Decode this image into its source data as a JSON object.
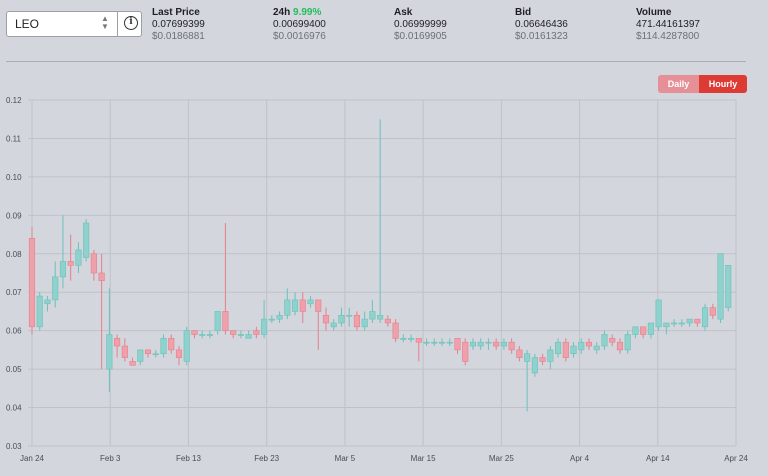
{
  "pair_selector": {
    "symbol": "LEO"
  },
  "stats": [
    {
      "label": "Last Price",
      "value": "0.07699399",
      "usd": "$0.0186881"
    },
    {
      "label": "24h",
      "change": "9.99%",
      "value": "0.00699400",
      "usd": "$0.0016976"
    },
    {
      "label": "Ask",
      "value": "0.06999999",
      "usd": "$0.0169905"
    },
    {
      "label": "Bid",
      "value": "0.06646436",
      "usd": "$0.0161323"
    },
    {
      "label": "Volume",
      "value": "471.44161397",
      "usd": "$114.4287800"
    }
  ],
  "timeframe": {
    "daily_label": "Daily",
    "hourly_label": "Hourly",
    "selected": "Hourly"
  },
  "colors": {
    "up": "#8fd1cc",
    "down": "#f0a0aa",
    "up_stroke": "#6cc1bb",
    "down_stroke": "#e57f8c"
  },
  "chart_data": {
    "type": "candlestick",
    "ylim": [
      0.03,
      0.12
    ],
    "y_ticks": [
      "0.12",
      "0.11",
      "0.10",
      "0.09",
      "0.08",
      "0.07",
      "0.06",
      "0.05",
      "0.04",
      "0.03"
    ],
    "x_ticks": [
      "Jan 24",
      "Feb 3",
      "Feb 13",
      "Feb 23",
      "Mar 5",
      "Mar 15",
      "Mar 25",
      "Apr 4",
      "Apr 14",
      "Apr 24"
    ],
    "x_range_days": [
      0,
      91
    ],
    "candles": [
      [
        0,
        0.084,
        0.061,
        0.087,
        0.059
      ],
      [
        1,
        0.061,
        0.069,
        0.07,
        0.06
      ],
      [
        2,
        0.067,
        0.068,
        0.069,
        0.065
      ],
      [
        3,
        0.068,
        0.074,
        0.078,
        0.066
      ],
      [
        4,
        0.074,
        0.078,
        0.09,
        0.071
      ],
      [
        5,
        0.078,
        0.077,
        0.085,
        0.073
      ],
      [
        6,
        0.077,
        0.081,
        0.083,
        0.075
      ],
      [
        7,
        0.079,
        0.088,
        0.089,
        0.078
      ],
      [
        8,
        0.08,
        0.075,
        0.081,
        0.073
      ],
      [
        9,
        0.075,
        0.073,
        0.08,
        0.05
      ],
      [
        10,
        0.05,
        0.059,
        0.071,
        0.044
      ],
      [
        11,
        0.058,
        0.056,
        0.059,
        0.053
      ],
      [
        12,
        0.056,
        0.053,
        0.058,
        0.052
      ],
      [
        13,
        0.052,
        0.051,
        0.053,
        0.051
      ],
      [
        14,
        0.052,
        0.055,
        0.055,
        0.051
      ],
      [
        15,
        0.055,
        0.054,
        0.055,
        0.053
      ],
      [
        16,
        0.054,
        0.054,
        0.055,
        0.053
      ],
      [
        17,
        0.054,
        0.058,
        0.059,
        0.053
      ],
      [
        18,
        0.058,
        0.055,
        0.059,
        0.054
      ],
      [
        19,
        0.055,
        0.053,
        0.056,
        0.051
      ],
      [
        20,
        0.052,
        0.06,
        0.061,
        0.051
      ],
      [
        21,
        0.06,
        0.059,
        0.06,
        0.058
      ],
      [
        22,
        0.059,
        0.059,
        0.06,
        0.058
      ],
      [
        23,
        0.059,
        0.059,
        0.06,
        0.058
      ],
      [
        24,
        0.06,
        0.065,
        0.065,
        0.059
      ],
      [
        25,
        0.065,
        0.06,
        0.088,
        0.059
      ],
      [
        26,
        0.06,
        0.059,
        0.06,
        0.058
      ],
      [
        27,
        0.059,
        0.059,
        0.06,
        0.058
      ],
      [
        28,
        0.058,
        0.059,
        0.06,
        0.058
      ],
      [
        29,
        0.06,
        0.059,
        0.061,
        0.058
      ],
      [
        30,
        0.059,
        0.063,
        0.068,
        0.058
      ],
      [
        31,
        0.063,
        0.063,
        0.064,
        0.062
      ],
      [
        32,
        0.063,
        0.064,
        0.065,
        0.062
      ],
      [
        33,
        0.064,
        0.068,
        0.071,
        0.063
      ],
      [
        34,
        0.065,
        0.068,
        0.07,
        0.064
      ],
      [
        35,
        0.068,
        0.065,
        0.07,
        0.062
      ],
      [
        36,
        0.067,
        0.068,
        0.069,
        0.066
      ],
      [
        37,
        0.068,
        0.065,
        0.068,
        0.055
      ],
      [
        38,
        0.064,
        0.062,
        0.066,
        0.06
      ],
      [
        39,
        0.061,
        0.062,
        0.063,
        0.06
      ],
      [
        40,
        0.062,
        0.064,
        0.066,
        0.061
      ],
      [
        41,
        0.064,
        0.064,
        0.066,
        0.061
      ],
      [
        42,
        0.064,
        0.061,
        0.065,
        0.06
      ],
      [
        43,
        0.061,
        0.063,
        0.065,
        0.06
      ],
      [
        44,
        0.063,
        0.065,
        0.068,
        0.062
      ],
      [
        45,
        0.063,
        0.064,
        0.115,
        0.062
      ],
      [
        46,
        0.063,
        0.062,
        0.064,
        0.061
      ],
      [
        47,
        0.062,
        0.058,
        0.063,
        0.057
      ],
      [
        48,
        0.058,
        0.058,
        0.059,
        0.057
      ],
      [
        49,
        0.058,
        0.058,
        0.059,
        0.057
      ],
      [
        50,
        0.058,
        0.057,
        0.058,
        0.052
      ],
      [
        51,
        0.057,
        0.057,
        0.058,
        0.056
      ],
      [
        52,
        0.057,
        0.057,
        0.058,
        0.056
      ],
      [
        53,
        0.057,
        0.057,
        0.058,
        0.056
      ],
      [
        54,
        0.057,
        0.057,
        0.058,
        0.056
      ],
      [
        55,
        0.058,
        0.055,
        0.058,
        0.054
      ],
      [
        56,
        0.057,
        0.052,
        0.058,
        0.051
      ],
      [
        57,
        0.056,
        0.057,
        0.058,
        0.055
      ],
      [
        58,
        0.056,
        0.057,
        0.058,
        0.055
      ],
      [
        59,
        0.057,
        0.057,
        0.058,
        0.055
      ],
      [
        60,
        0.057,
        0.056,
        0.058,
        0.055
      ],
      [
        61,
        0.056,
        0.057,
        0.058,
        0.055
      ],
      [
        62,
        0.057,
        0.055,
        0.058,
        0.054
      ],
      [
        63,
        0.055,
        0.053,
        0.056,
        0.052
      ],
      [
        64,
        0.052,
        0.054,
        0.055,
        0.039
      ],
      [
        65,
        0.049,
        0.053,
        0.054,
        0.048
      ],
      [
        66,
        0.053,
        0.052,
        0.054,
        0.051
      ],
      [
        67,
        0.052,
        0.055,
        0.056,
        0.05
      ],
      [
        68,
        0.054,
        0.057,
        0.058,
        0.053
      ],
      [
        69,
        0.057,
        0.053,
        0.058,
        0.052
      ],
      [
        70,
        0.054,
        0.056,
        0.057,
        0.053
      ],
      [
        71,
        0.055,
        0.057,
        0.058,
        0.054
      ],
      [
        72,
        0.057,
        0.056,
        0.058,
        0.055
      ],
      [
        73,
        0.055,
        0.056,
        0.057,
        0.054
      ],
      [
        74,
        0.056,
        0.059,
        0.06,
        0.055
      ],
      [
        75,
        0.058,
        0.057,
        0.059,
        0.056
      ],
      [
        76,
        0.057,
        0.055,
        0.058,
        0.054
      ],
      [
        77,
        0.055,
        0.059,
        0.06,
        0.054
      ],
      [
        78,
        0.059,
        0.061,
        0.061,
        0.058
      ],
      [
        79,
        0.061,
        0.059,
        0.061,
        0.058
      ],
      [
        80,
        0.059,
        0.062,
        0.062,
        0.058
      ],
      [
        81,
        0.061,
        0.068,
        0.068,
        0.06
      ],
      [
        82,
        0.061,
        0.062,
        0.062,
        0.059
      ],
      [
        83,
        0.062,
        0.062,
        0.063,
        0.061
      ],
      [
        84,
        0.062,
        0.062,
        0.063,
        0.061
      ],
      [
        85,
        0.062,
        0.063,
        0.063,
        0.061
      ],
      [
        86,
        0.063,
        0.062,
        0.063,
        0.061
      ],
      [
        87,
        0.061,
        0.066,
        0.067,
        0.06
      ],
      [
        88,
        0.066,
        0.064,
        0.067,
        0.063
      ],
      [
        89,
        0.063,
        0.08,
        0.08,
        0.062
      ],
      [
        90,
        0.066,
        0.077,
        0.077,
        0.065
      ]
    ]
  }
}
